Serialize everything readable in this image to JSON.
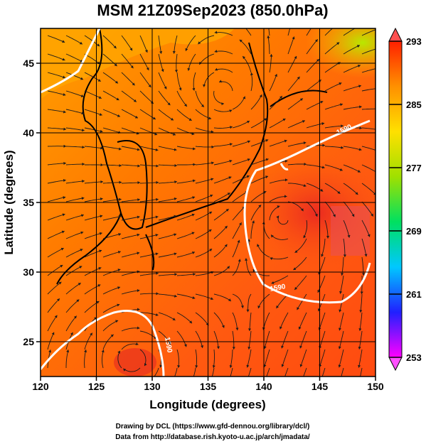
{
  "title": "MSM 21Z09Sep2023 (850.0hPa)",
  "x_axis": {
    "label": "Longitude (degrees)",
    "ticks": [
      "120",
      "125",
      "130",
      "135",
      "140",
      "145",
      "150"
    ]
  },
  "y_axis": {
    "label": "Latitude  (degrees)",
    "ticks": [
      "25",
      "30",
      "35",
      "40",
      "45"
    ]
  },
  "colorbar": {
    "ticks": [
      "293",
      "285",
      "277",
      "269",
      "261",
      "253"
    ],
    "min": 253,
    "max": 293,
    "colors": [
      "#ff00ff",
      "#2020ff",
      "#00c8ff",
      "#00e060",
      "#a0e000",
      "#ffe000",
      "#ff9000",
      "#ff2000"
    ]
  },
  "contour_labels": [
    "1590",
    "1590",
    "1590"
  ],
  "credits": [
    "Drawing by DCL (https://www.gfd-dennou.org/library/dcl/)",
    "Data from http://database.rish.kyoto-u.ac.jp/arch/jmadata/"
  ],
  "map": {
    "lon_range": [
      120,
      150
    ],
    "lat_range": [
      22.5,
      47.5
    ],
    "field": "temperature (K) with wind streamlines",
    "accent_colors": {
      "warm": "#ff5a00",
      "hot": "#e82000",
      "mild": "#ffa000",
      "cool": "#c8e000",
      "contour": "#ffffff"
    }
  }
}
